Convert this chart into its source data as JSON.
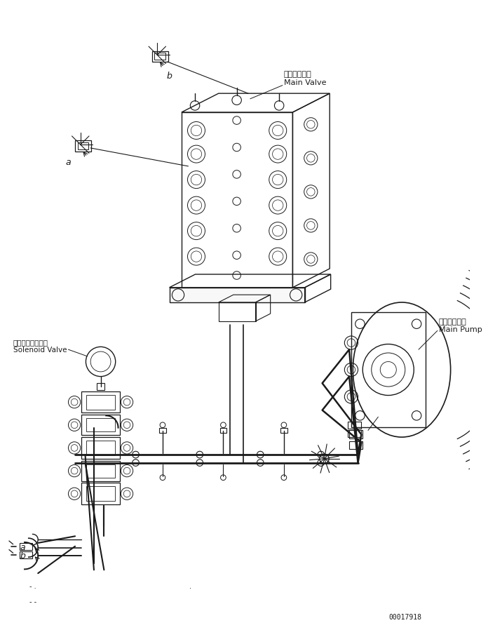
{
  "bg_color": "#ffffff",
  "line_color": "#1a1a1a",
  "fig_width": 6.96,
  "fig_height": 9.08,
  "dpi": 100,
  "labels": {
    "main_valve_jp": "メインバルブ",
    "main_valve_en": "Main Valve",
    "main_pump_jp": "メインポンプ",
    "main_pump_en": "Main Pump",
    "solenoid_jp": "ソレノイドバルブ",
    "solenoid_en": "Solenoid Valve",
    "label_a": "a",
    "label_b": "b",
    "part_number": "00017918"
  }
}
